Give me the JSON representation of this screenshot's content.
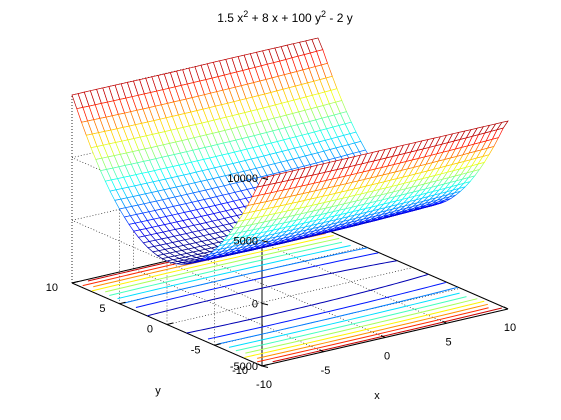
{
  "chart_data": {
    "type": "surface",
    "plot_style": "meshc",
    "colormap": "jet",
    "title_parts": [
      "1.5 x",
      "2",
      " + 8 x + 100 y",
      "2",
      " - 2 y"
    ],
    "xlabel": "x",
    "ylabel": "y",
    "zlabel": "",
    "function": {
      "a_x2": 1.5,
      "b_x": 8,
      "c_y2": 100,
      "d_y": -2
    },
    "xlim": [
      -10,
      10
    ],
    "ylim": [
      -10,
      10
    ],
    "zlim": [
      -5000,
      10000
    ],
    "x_ticks": [
      "-10",
      "-5",
      "0",
      "5",
      "10"
    ],
    "y_ticks": [
      "-10",
      "-5",
      "0",
      "5",
      "10"
    ],
    "z_ticks": [
      "-5000",
      "0",
      "5000",
      "10000"
    ],
    "x_tick_values": [
      -10,
      -5,
      0,
      5,
      10
    ],
    "y_tick_values": [
      -10,
      -5,
      0,
      5,
      10
    ],
    "z_tick_values": [
      -5000,
      0,
      5000,
      10000
    ],
    "grid": true,
    "contour_levels": [
      500,
      1500,
      2500,
      3500,
      4500,
      5500,
      6500,
      7500,
      8500,
      9500
    ],
    "mesh_lines_x": 41,
    "mesh_lines_y": 41
  }
}
